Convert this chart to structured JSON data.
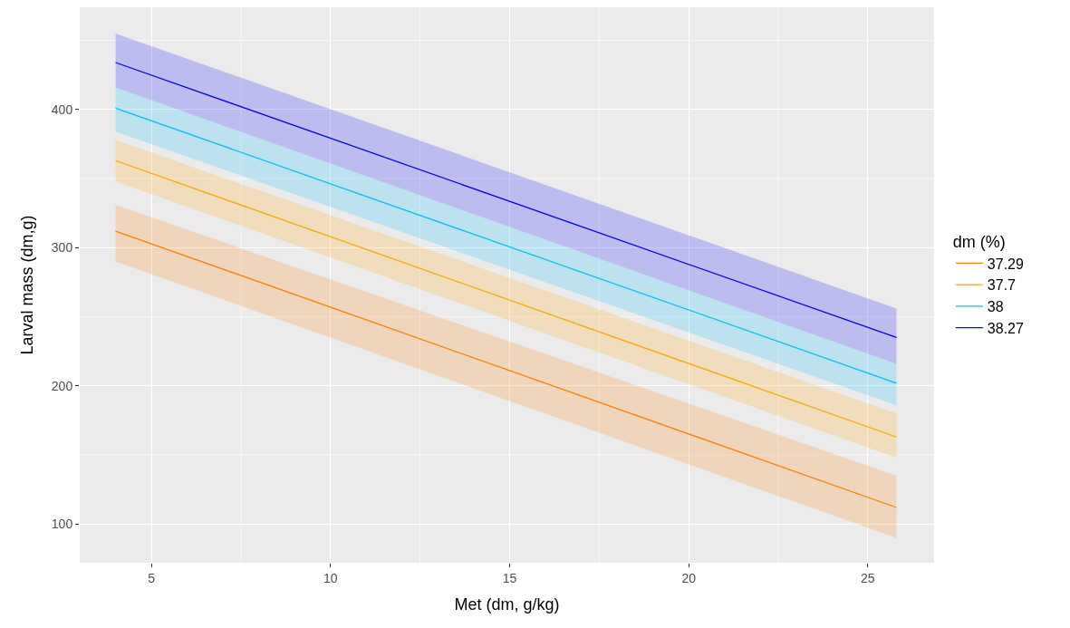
{
  "chart_data": {
    "type": "line",
    "xlabel": "Met (dm, g/kg)",
    "ylabel": "Larval mass (dm,g)",
    "legend_title": "dm (%)",
    "x": [
      4,
      25.8
    ],
    "series": [
      {
        "name": "37.29",
        "color": "#ff7f00",
        "values": [
          312,
          112
        ],
        "lower": [
          290,
          90
        ],
        "upper": [
          331,
          135
        ]
      },
      {
        "name": "37.7",
        "color": "#ffa500",
        "values": [
          363,
          163
        ],
        "lower": [
          348,
          148
        ],
        "upper": [
          378,
          180
        ]
      },
      {
        "name": "38",
        "color": "#00bfff",
        "values": [
          401,
          202
        ],
        "lower": [
          384,
          186
        ],
        "upper": [
          416,
          216
        ]
      },
      {
        "name": "38.27",
        "color": "#0000ff",
        "values": [
          434,
          235
        ],
        "lower": [
          416,
          216
        ],
        "upper": [
          455,
          256
        ]
      }
    ],
    "xlim": [
      3,
      26.85
    ],
    "ylim": [
      72,
      474
    ],
    "xticks": [
      5,
      10,
      15,
      20,
      25
    ],
    "yticks": [
      100,
      200,
      300,
      400
    ],
    "grid": true,
    "legend": "right",
    "marker": "none",
    "line_style": "solid"
  }
}
